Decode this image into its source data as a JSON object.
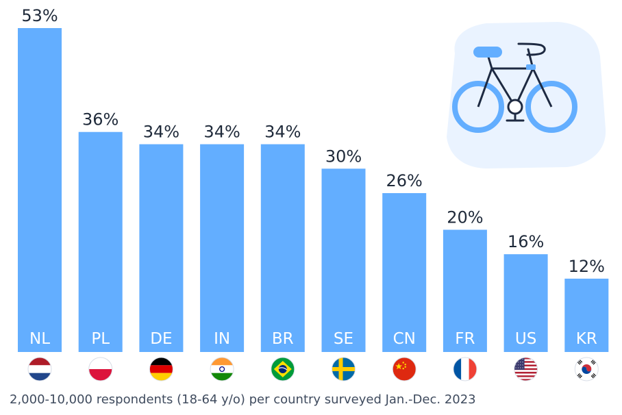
{
  "chart_data": {
    "type": "bar",
    "categories": [
      "NL",
      "PL",
      "DE",
      "IN",
      "BR",
      "SE",
      "CN",
      "FR",
      "US",
      "KR"
    ],
    "values": [
      53,
      36,
      34,
      34,
      34,
      30,
      26,
      20,
      16,
      12
    ],
    "value_labels": [
      "53%",
      "36%",
      "34%",
      "34%",
      "34%",
      "30%",
      "26%",
      "20%",
      "16%",
      "12%"
    ],
    "title": "",
    "xlabel": "",
    "ylabel": "",
    "ylim": [
      0,
      53
    ],
    "grid": false,
    "legend": "none"
  },
  "footnote": "2,000-10,000 respondents (18-64 y/o) per country surveyed Jan.-Dec. 2023",
  "illustration": {
    "icon": "bicycle-icon"
  },
  "flags": [
    "netherlands-flag-icon",
    "poland-flag-icon",
    "germany-flag-icon",
    "india-flag-icon",
    "brazil-flag-icon",
    "sweden-flag-icon",
    "china-flag-icon",
    "france-flag-icon",
    "usa-flag-icon",
    "south-korea-flag-icon"
  ],
  "colors": {
    "bar": "#63aeff",
    "value_text": "#1f2a3a",
    "category_text": "#ffffff",
    "footnote_text": "#3f4b5e",
    "illustration_bg": "#eaf3ff",
    "bicycle_line": "#1e2a42",
    "bicycle_accent": "#63aeff"
  }
}
